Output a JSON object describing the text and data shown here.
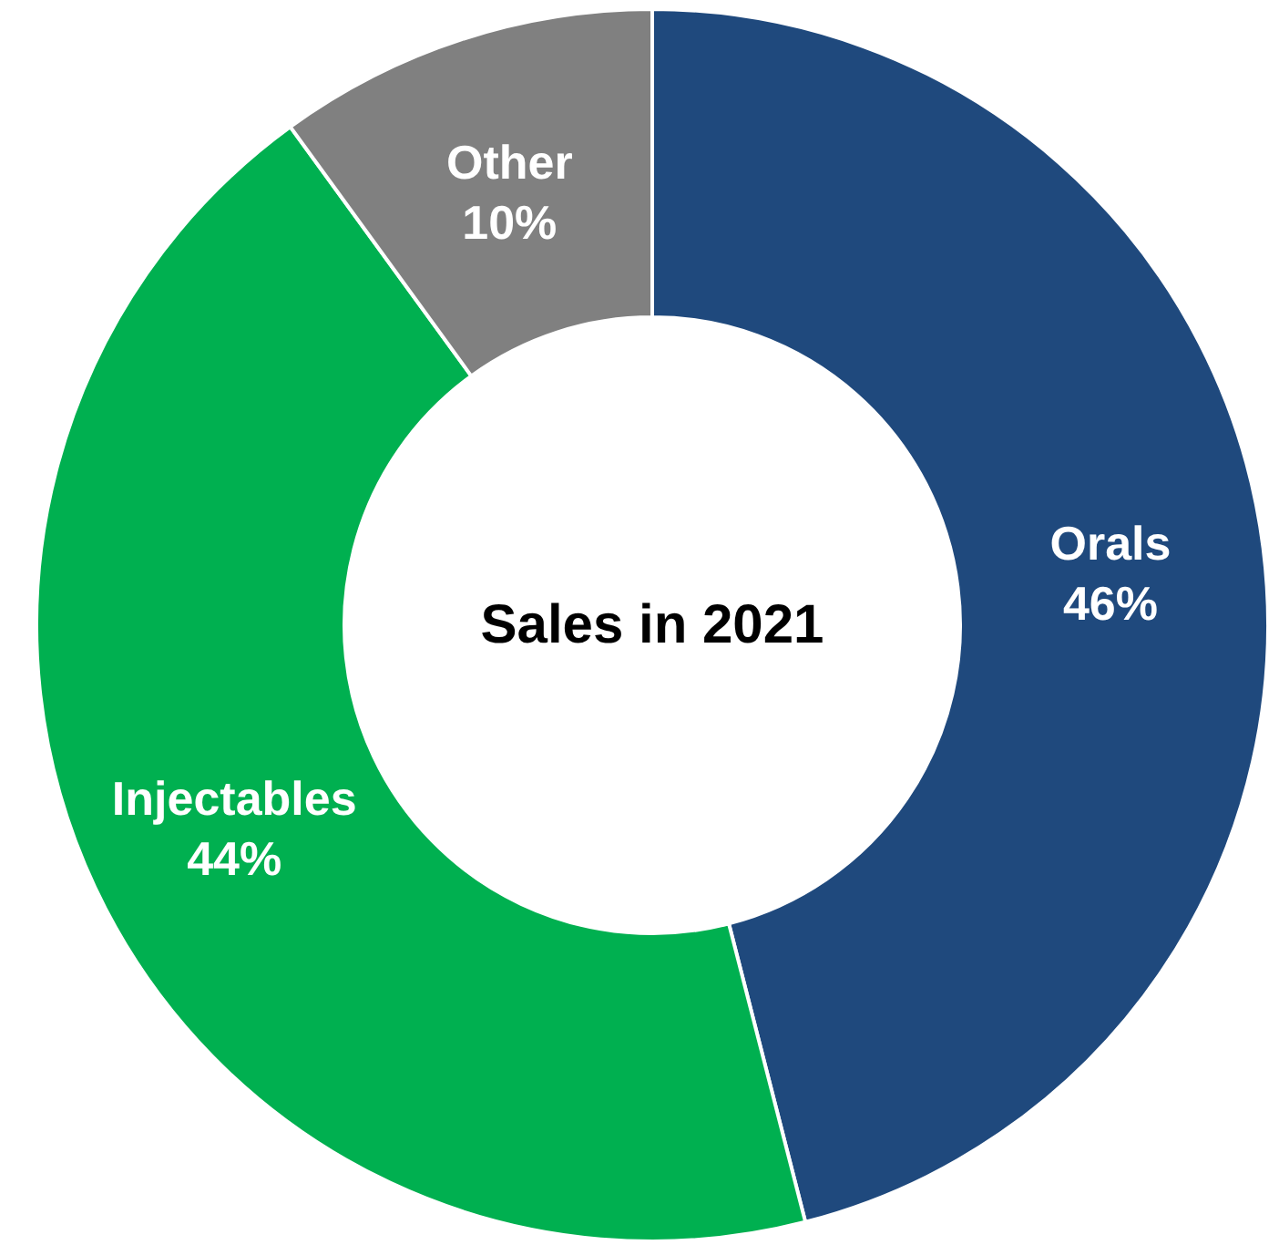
{
  "chart_data": {
    "type": "donut",
    "title": "Sales in 2021",
    "categories": [
      "Orals",
      "Injectables",
      "Other"
    ],
    "values": [
      46,
      44,
      10
    ],
    "value_labels": [
      "46%",
      "44%",
      "10%"
    ],
    "colors": [
      "#1f497d",
      "#00b050",
      "#808080"
    ]
  }
}
